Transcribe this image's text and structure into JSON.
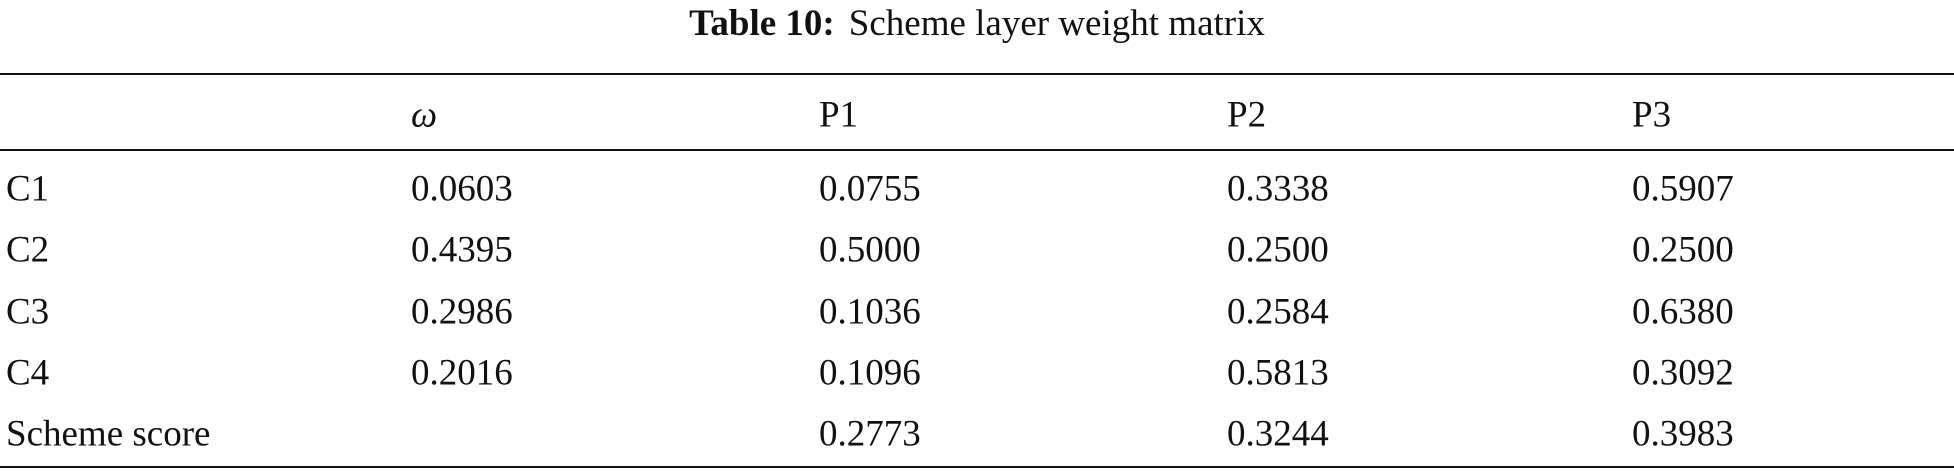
{
  "table": {
    "caption": {
      "label": "Table 10:",
      "title": "Scheme layer weight matrix"
    },
    "columns": [
      "ω",
      "P1",
      "P2",
      "P3"
    ],
    "rows": [
      {
        "label": "C1",
        "cells": [
          "0.0603",
          "0.0755",
          "0.3338",
          "0.5907"
        ]
      },
      {
        "label": "C2",
        "cells": [
          "0.4395",
          "0.5000",
          "0.2500",
          "0.2500"
        ]
      },
      {
        "label": "C3",
        "cells": [
          "0.2986",
          "0.1036",
          "0.2584",
          "0.6380"
        ]
      },
      {
        "label": "C4",
        "cells": [
          "0.2016",
          "0.1096",
          "0.5813",
          "0.3092"
        ]
      },
      {
        "label": "Scheme score",
        "cells": [
          null,
          "0.2773",
          "0.3244",
          "0.3983"
        ]
      }
    ]
  }
}
